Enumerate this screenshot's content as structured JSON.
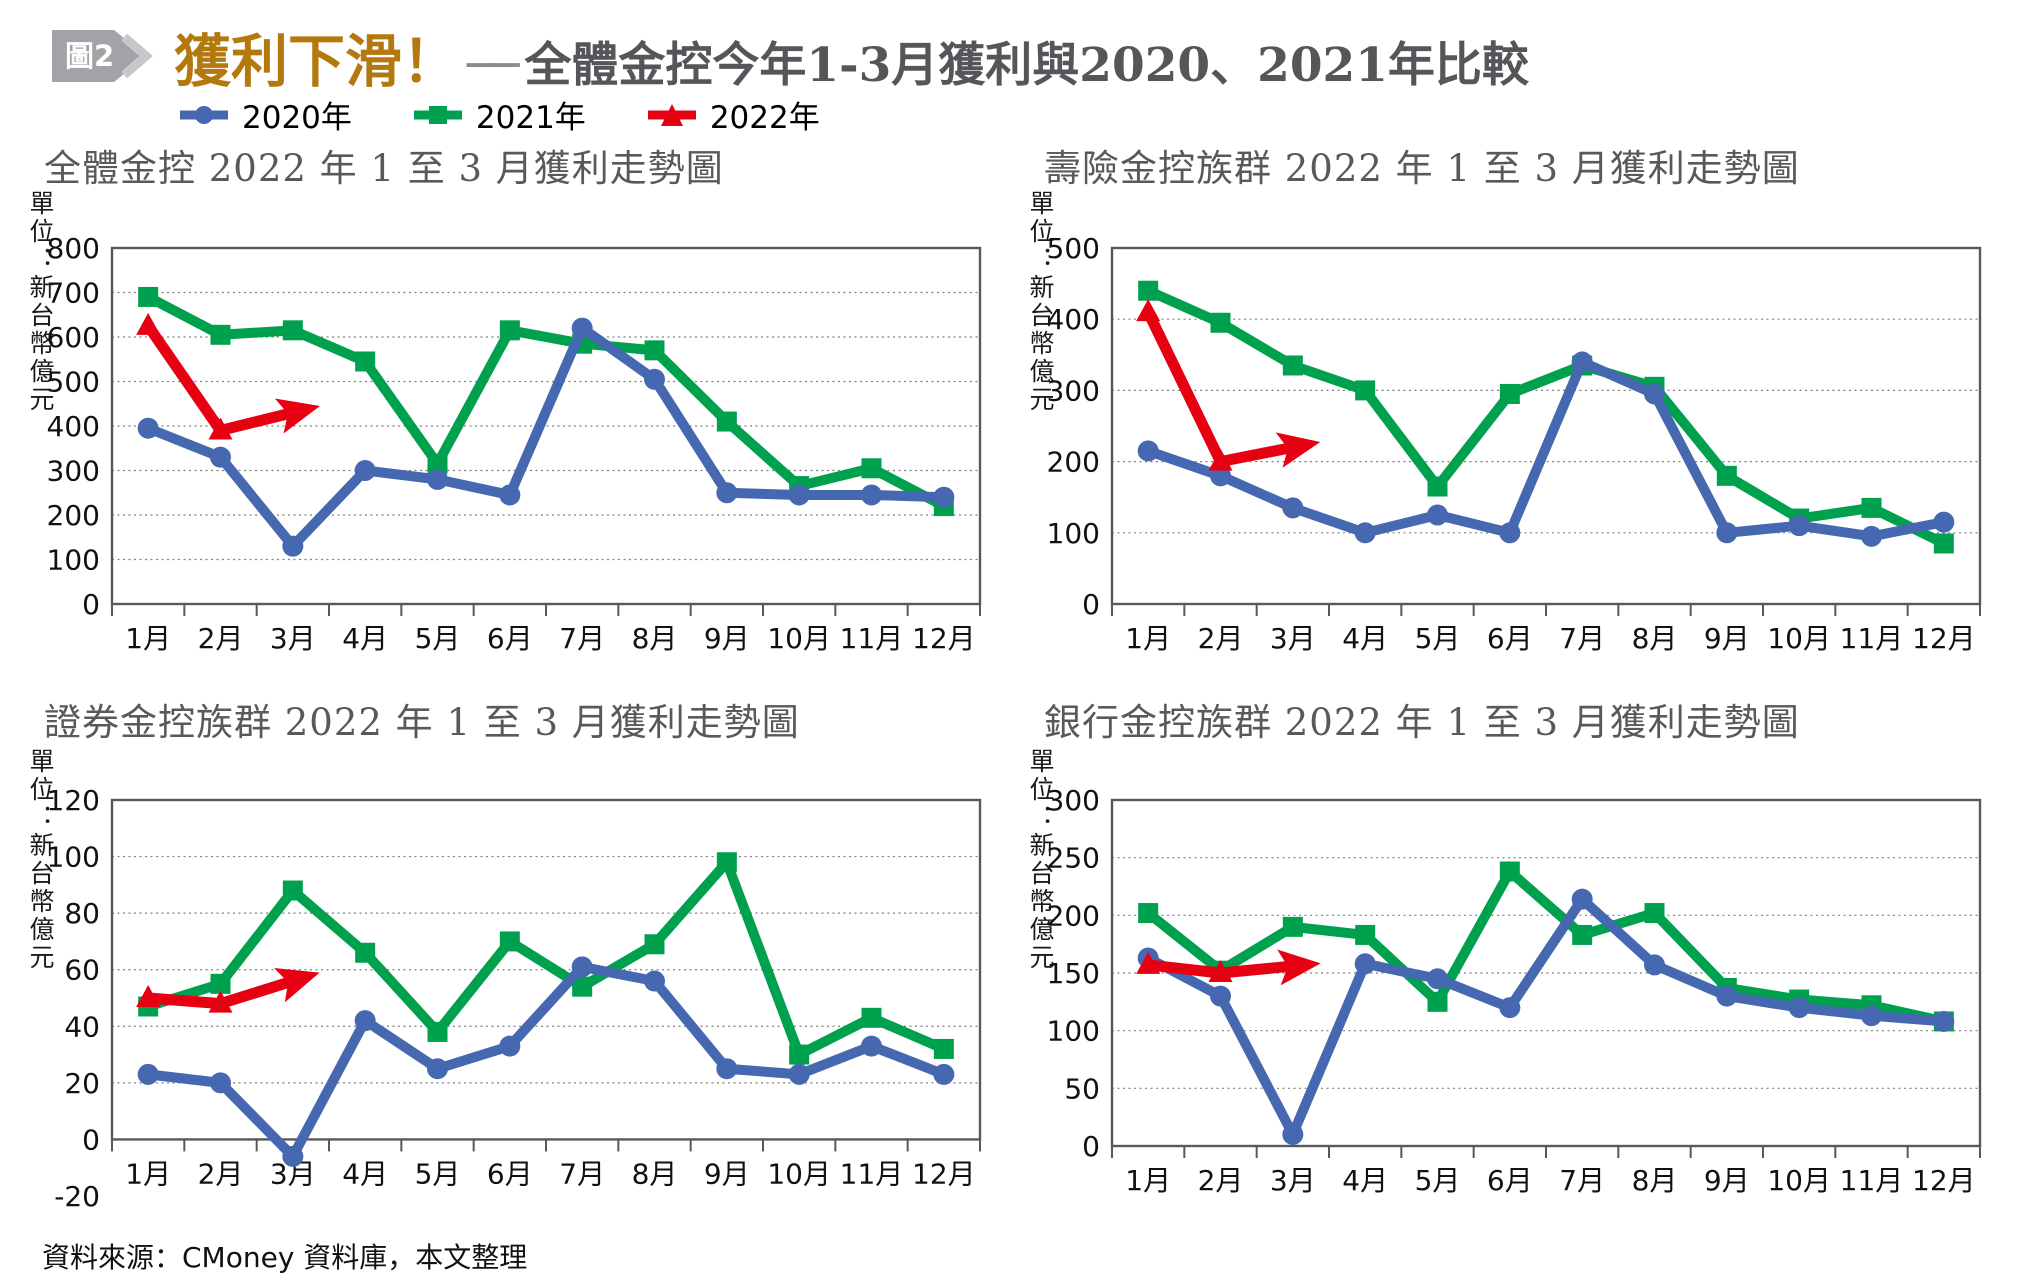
{
  "header": {
    "figure_badge": "圖2",
    "title": "獲利下滑！",
    "dash": "──",
    "subtitle": "全體金控今年1-3月獲利與2020、2021年比較"
  },
  "legend": {
    "items": [
      {
        "label": "2020年",
        "color": "#4668b0",
        "marker": "circle"
      },
      {
        "label": "2021年",
        "color": "#00a14e",
        "marker": "square"
      },
      {
        "label": "2022年",
        "color": "#e60012",
        "marker": "triangle"
      }
    ]
  },
  "footer": {
    "source": "資料來源：CMoney 資料庫，本文整理"
  },
  "chart_data": [
    {
      "type": "line",
      "title": "全體金控 2022 年 1 至 3 月獲利走勢圖",
      "unit_label": "單位：新台幣億元",
      "categories": [
        "1月",
        "2月",
        "3月",
        "4月",
        "5月",
        "6月",
        "7月",
        "8月",
        "9月",
        "10月",
        "11月",
        "12月"
      ],
      "ylim": [
        0,
        800
      ],
      "ystep": 100,
      "grid": "horizontal-dotted",
      "legend_position": "top-shared",
      "series": [
        {
          "name": "2020年",
          "color": "#4668b0",
          "marker": "circle",
          "values": [
            395,
            330,
            130,
            300,
            280,
            245,
            620,
            505,
            250,
            245,
            245,
            240
          ]
        },
        {
          "name": "2021年",
          "color": "#00a14e",
          "marker": "square",
          "values": [
            690,
            605,
            615,
            545,
            315,
            615,
            585,
            570,
            410,
            265,
            305,
            220
          ]
        },
        {
          "name": "2022年",
          "color": "#e60012",
          "marker": "triangle-arrow",
          "values": [
            625,
            390,
            430
          ]
        }
      ]
    },
    {
      "type": "line",
      "title": "壽險金控族群 2022 年 1 至 3 月獲利走勢圖",
      "unit_label": "單位：新台幣億元",
      "categories": [
        "1月",
        "2月",
        "3月",
        "4月",
        "5月",
        "6月",
        "7月",
        "8月",
        "9月",
        "10月",
        "11月",
        "12月"
      ],
      "ylim": [
        0,
        500
      ],
      "ystep": 100,
      "grid": "horizontal-dotted",
      "legend_position": "top-shared",
      "series": [
        {
          "name": "2020年",
          "color": "#4668b0",
          "marker": "circle",
          "values": [
            215,
            180,
            135,
            100,
            125,
            100,
            340,
            295,
            100,
            110,
            95,
            115
          ]
        },
        {
          "name": "2021年",
          "color": "#00a14e",
          "marker": "square",
          "values": [
            440,
            395,
            335,
            300,
            165,
            295,
            335,
            305,
            180,
            120,
            135,
            85
          ]
        },
        {
          "name": "2022年",
          "color": "#e60012",
          "marker": "triangle-arrow",
          "values": [
            410,
            200,
            220
          ]
        }
      ]
    },
    {
      "type": "line",
      "title": "證券金控族群 2022 年 1 至 3 月獲利走勢圖",
      "unit_label": "單位：新台幣億元",
      "categories": [
        "1月",
        "2月",
        "3月",
        "4月",
        "5月",
        "6月",
        "7月",
        "8月",
        "9月",
        "10月",
        "11月",
        "12月"
      ],
      "ylim": [
        -20,
        120
      ],
      "ystep": 20,
      "grid": "horizontal-dotted",
      "legend_position": "top-shared",
      "series": [
        {
          "name": "2020年",
          "color": "#4668b0",
          "marker": "circle",
          "values": [
            23,
            20,
            -6,
            42,
            25,
            33,
            61,
            56,
            25,
            23,
            33,
            23
          ]
        },
        {
          "name": "2021年",
          "color": "#00a14e",
          "marker": "square",
          "values": [
            47,
            55,
            88,
            66,
            38,
            70,
            54,
            69,
            98,
            30,
            43,
            32
          ]
        },
        {
          "name": "2022年",
          "color": "#e60012",
          "marker": "triangle-arrow",
          "values": [
            50,
            48,
            56
          ]
        }
      ]
    },
    {
      "type": "line",
      "title": "銀行金控族群 2022 年 1 至 3 月獲利走勢圖",
      "unit_label": "單位：新台幣億元",
      "categories": [
        "1月",
        "2月",
        "3月",
        "4月",
        "5月",
        "6月",
        "7月",
        "8月",
        "9月",
        "10月",
        "11月",
        "12月"
      ],
      "ylim": [
        0,
        300
      ],
      "ystep": 50,
      "grid": "horizontal-dotted",
      "legend_position": "top-shared",
      "series": [
        {
          "name": "2020年",
          "color": "#4668b0",
          "marker": "circle",
          "values": [
            163,
            130,
            10,
            158,
            145,
            120,
            214,
            157,
            130,
            120,
            113,
            108
          ]
        },
        {
          "name": "2021年",
          "color": "#00a14e",
          "marker": "square",
          "values": [
            202,
            152,
            190,
            183,
            125,
            238,
            183,
            202,
            137,
            127,
            122,
            108
          ]
        },
        {
          "name": "2022年",
          "color": "#e60012",
          "marker": "triangle-arrow",
          "values": [
            157,
            150,
            156
          ]
        }
      ]
    }
  ]
}
